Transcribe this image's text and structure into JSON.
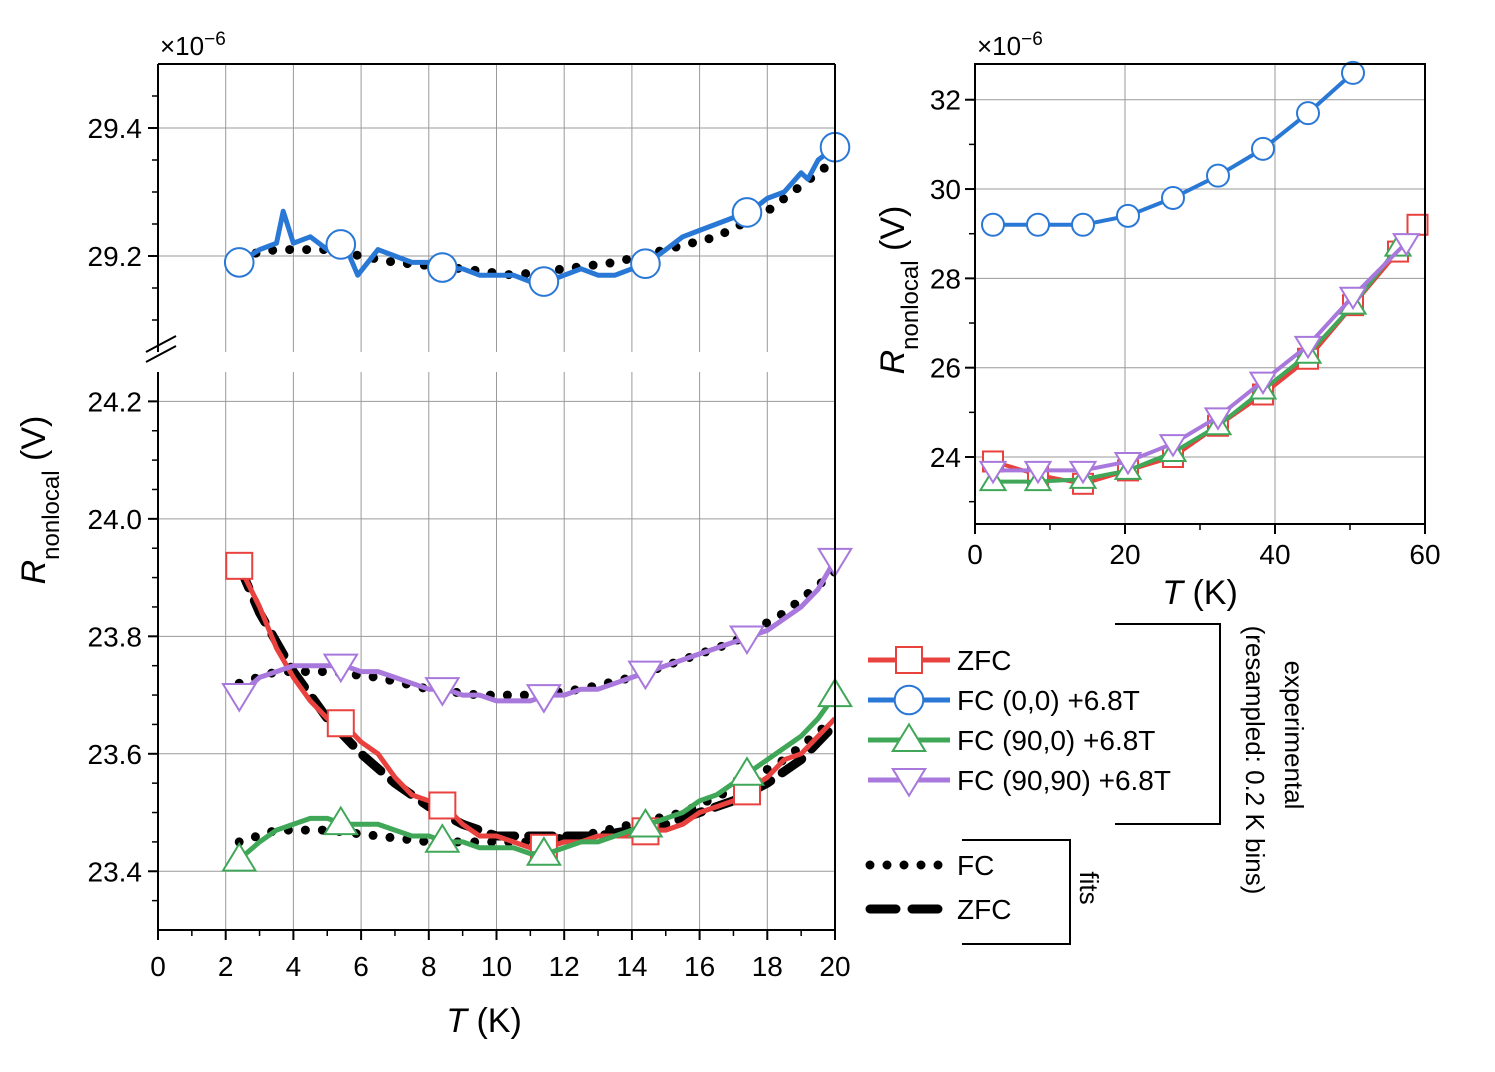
{
  "main_chart": {
    "type": "line",
    "multiplier": "×10",
    "multiplier_exp": "−6",
    "xlabel_italic": "T",
    "xlabel_unit": " (K)",
    "ylabel_italic": "R",
    "ylabel_sub": "nonlocal",
    "ylabel_unit": " (V)",
    "xlim": [
      0,
      20
    ],
    "x_ticks": [
      "0",
      "2",
      "4",
      "6",
      "8",
      "10",
      "12",
      "14",
      "16",
      "18",
      "20"
    ],
    "upper_ylim": [
      29.05,
      29.5
    ],
    "upper_y_ticks": [
      "29.2",
      "29.4"
    ],
    "lower_ylim": [
      23.3,
      24.25
    ],
    "lower_y_ticks": [
      "23.4",
      "23.6",
      "23.8",
      "24.0",
      "24.2"
    ],
    "broken_axis": true,
    "grid": true
  },
  "inset_chart": {
    "type": "line",
    "multiplier": "×10",
    "multiplier_exp": "−6",
    "xlabel_italic": "T",
    "xlabel_unit": " (K)",
    "ylabel_italic": "R",
    "ylabel_sub": "nonlocal",
    "ylabel_unit": " (V)",
    "xlim": [
      0,
      60
    ],
    "ylim": [
      22.5,
      32.8
    ],
    "x_ticks": [
      "0",
      "20",
      "40",
      "60"
    ],
    "y_ticks": [
      "24",
      "26",
      "28",
      "30",
      "32"
    ],
    "grid": true
  },
  "legend": {
    "experimental_label": "experimental",
    "resampled_label": "(resampled: 0.2 K bins)",
    "fits_label": "fits",
    "experimental_entries": [
      {
        "label": "ZFC",
        "color": "#e8413e",
        "marker": "square"
      },
      {
        "label": "FC (0,0) +6.8T",
        "color": "#2a78d6",
        "marker": "circle"
      },
      {
        "label": "FC (90,0) +6.8T",
        "color": "#3fa757",
        "marker": "triangle-up"
      },
      {
        "label": "FC (90,90) +6.8T",
        "color": "#a878dc",
        "marker": "triangle-down"
      }
    ],
    "fit_entries": [
      {
        "label": "FC",
        "style": "dotted",
        "color": "#000000"
      },
      {
        "label": "ZFC",
        "style": "dashed",
        "color": "#000000"
      }
    ]
  },
  "chart_data": [
    {
      "type": "line",
      "xlabel": "T (K)",
      "ylabel": "Rnonlocal (V)",
      "multiplier": "×10−6",
      "xlim": [
        0,
        20
      ],
      "series": [
        {
          "name": "ZFC",
          "color": "#e8413e",
          "marker": "square",
          "x": [
            2.4,
            3.0,
            3.5,
            4.0,
            4.5,
            5.0,
            5.5,
            6.0,
            6.5,
            7.0,
            7.5,
            8.0,
            8.5,
            9.0,
            9.5,
            10.0,
            10.5,
            11.0,
            11.5,
            12.0,
            12.5,
            13.0,
            13.5,
            14.0,
            14.5,
            15.0,
            15.5,
            16.0,
            16.5,
            17.0,
            17.5,
            18.0,
            18.5,
            19.0,
            19.5,
            20.0
          ],
          "y": [
            23.92,
            23.85,
            23.78,
            23.73,
            23.69,
            23.66,
            23.65,
            23.62,
            23.6,
            23.56,
            23.53,
            23.52,
            23.51,
            23.48,
            23.46,
            23.46,
            23.45,
            23.44,
            23.44,
            23.45,
            23.45,
            23.46,
            23.46,
            23.46,
            23.47,
            23.47,
            23.48,
            23.5,
            23.51,
            23.52,
            23.54,
            23.56,
            23.59,
            23.6,
            23.63,
            23.66
          ],
          "marker_x": [
            2.4,
            5.4,
            8.4,
            11.4,
            14.4,
            17.4
          ]
        },
        {
          "name": "FC (0,0) +6.8T",
          "color": "#2a78d6",
          "marker": "circle",
          "x": [
            2.4,
            3.0,
            3.5,
            3.7,
            4.0,
            4.5,
            5.0,
            5.5,
            5.9,
            6.5,
            7.0,
            7.5,
            8.0,
            8.5,
            9.0,
            9.5,
            10.0,
            10.5,
            11.0,
            11.5,
            12.0,
            12.5,
            13.0,
            13.5,
            14.0,
            14.5,
            15.0,
            15.5,
            16.0,
            16.5,
            17.0,
            17.5,
            18.0,
            18.5,
            19.0,
            19.2,
            19.5,
            20.0
          ],
          "y": [
            29.19,
            29.21,
            29.22,
            29.27,
            29.22,
            29.23,
            29.21,
            29.22,
            29.17,
            29.21,
            29.2,
            29.19,
            29.19,
            29.18,
            29.18,
            29.17,
            29.17,
            29.17,
            29.16,
            29.16,
            29.17,
            29.18,
            29.17,
            29.17,
            29.18,
            29.19,
            29.21,
            29.23,
            29.24,
            29.25,
            29.26,
            29.27,
            29.29,
            29.3,
            29.33,
            29.32,
            29.35,
            29.37
          ],
          "marker_x": [
            2.4,
            5.4,
            8.4,
            11.4,
            14.4,
            17.4,
            20.0
          ]
        },
        {
          "name": "FC (90,0) +6.8T",
          "color": "#3fa757",
          "marker": "triangle-up",
          "x": [
            2.4,
            3.0,
            3.5,
            4.0,
            4.5,
            5.0,
            5.5,
            6.0,
            6.5,
            7.0,
            7.5,
            8.0,
            8.5,
            9.0,
            9.5,
            10.0,
            10.5,
            11.0,
            11.5,
            12.0,
            12.5,
            13.0,
            13.5,
            14.0,
            14.5,
            15.0,
            15.5,
            16.0,
            16.5,
            17.0,
            17.5,
            18.0,
            18.5,
            19.0,
            19.5,
            20.0
          ],
          "y": [
            23.42,
            23.45,
            23.47,
            23.48,
            23.49,
            23.49,
            23.48,
            23.48,
            23.48,
            23.47,
            23.46,
            23.46,
            23.45,
            23.45,
            23.44,
            23.44,
            23.44,
            23.43,
            23.43,
            23.44,
            23.45,
            23.45,
            23.46,
            23.47,
            23.48,
            23.49,
            23.5,
            23.52,
            23.53,
            23.55,
            23.57,
            23.59,
            23.61,
            23.63,
            23.66,
            23.7
          ],
          "marker_x": [
            2.4,
            5.4,
            8.4,
            11.4,
            14.4,
            17.4,
            20.0
          ]
        },
        {
          "name": "FC (90,90) +6.8T",
          "color": "#a878dc",
          "marker": "triangle-down",
          "x": [
            2.4,
            3.0,
            3.5,
            4.0,
            4.5,
            5.0,
            5.5,
            6.0,
            6.5,
            7.0,
            7.5,
            8.0,
            8.5,
            9.0,
            9.5,
            10.0,
            10.5,
            11.0,
            11.5,
            12.0,
            12.5,
            13.0,
            13.5,
            14.0,
            14.5,
            15.0,
            15.5,
            16.0,
            16.5,
            17.0,
            17.5,
            18.0,
            18.5,
            19.0,
            19.5,
            20.0
          ],
          "y": [
            23.7,
            23.73,
            23.74,
            23.75,
            23.75,
            23.75,
            23.75,
            23.74,
            23.74,
            23.73,
            23.72,
            23.71,
            23.71,
            23.7,
            23.7,
            23.69,
            23.69,
            23.69,
            23.7,
            23.7,
            23.71,
            23.71,
            23.72,
            23.73,
            23.74,
            23.75,
            23.76,
            23.77,
            23.78,
            23.79,
            23.8,
            23.81,
            23.83,
            23.85,
            23.88,
            23.93
          ],
          "marker_x": [
            2.4,
            5.4,
            8.4,
            11.4,
            14.4,
            17.4,
            20.0
          ]
        },
        {
          "name": "FC",
          "style": "dotted",
          "fit": true,
          "x": [
            2.4,
            3.5,
            5.0,
            7.0,
            9.0,
            10.5,
            12.0,
            13.5,
            15.0,
            16.5,
            18.0,
            19.0,
            20.0
          ],
          "y": [
            29.2,
            29.21,
            29.21,
            29.19,
            29.18,
            29.17,
            29.18,
            29.19,
            29.21,
            29.23,
            29.27,
            29.31,
            29.35
          ]
        },
        {
          "name": "FC",
          "style": "dotted",
          "fit": true,
          "x": [
            2.4,
            3.5,
            5.0,
            6.5,
            8.0,
            9.5,
            11.0,
            12.5,
            14.0,
            15.5,
            17.0,
            18.5,
            20.0
          ],
          "y": [
            23.72,
            23.74,
            23.74,
            23.73,
            23.71,
            23.7,
            23.7,
            23.71,
            23.73,
            23.76,
            23.79,
            23.84,
            23.91
          ]
        },
        {
          "name": "FC",
          "style": "dotted",
          "fit": true,
          "x": [
            2.4,
            3.5,
            5.0,
            6.5,
            8.0,
            9.5,
            11.0,
            12.5,
            14.0,
            15.5,
            17.0,
            18.5,
            20.0
          ],
          "y": [
            23.45,
            23.47,
            23.47,
            23.46,
            23.45,
            23.45,
            23.45,
            23.46,
            23.48,
            23.5,
            23.54,
            23.59,
            23.66
          ]
        },
        {
          "name": "ZFC",
          "style": "dashed",
          "fit": true,
          "x": [
            2.4,
            3.0,
            4.0,
            5.0,
            6.0,
            7.0,
            8.0,
            9.0,
            10.0,
            11.0,
            12.0,
            13.0,
            14.0,
            15.0,
            16.0,
            17.0,
            18.0,
            19.0,
            20.0
          ],
          "y": [
            23.92,
            23.84,
            23.74,
            23.66,
            23.6,
            23.55,
            23.51,
            23.48,
            23.46,
            23.46,
            23.46,
            23.46,
            23.47,
            23.48,
            23.5,
            23.52,
            23.55,
            23.59,
            23.65
          ]
        }
      ]
    },
    {
      "type": "line",
      "xlabel": "T (K)",
      "ylabel": "Rnonlocal (V)",
      "multiplier": "×10−6",
      "xlim": [
        0,
        60
      ],
      "ylim": [
        22.5,
        32.8
      ],
      "series": [
        {
          "name": "ZFC",
          "color": "#e8413e",
          "marker": "square",
          "x": [
            2.4,
            8.4,
            14.4,
            20.4,
            26.4,
            32.4,
            38.4,
            44.4,
            50.4,
            56.4,
            59.0
          ],
          "y": [
            23.9,
            23.6,
            23.4,
            23.7,
            24.0,
            24.7,
            25.4,
            26.2,
            27.4,
            28.6,
            29.2
          ],
          "marker_x": [
            2.4,
            8.4,
            14.4,
            20.4,
            26.4,
            32.4,
            38.4,
            44.4,
            50.4,
            56.4,
            59.0
          ]
        },
        {
          "name": "FC (0,0) +6.8T",
          "color": "#2a78d6",
          "marker": "circle",
          "x": [
            2.4,
            8.4,
            14.4,
            20.4,
            26.4,
            32.4,
            38.4,
            44.4,
            50.4
          ],
          "y": [
            29.2,
            29.2,
            29.2,
            29.4,
            29.8,
            30.3,
            30.9,
            31.7,
            32.6
          ],
          "marker_x": [
            2.4,
            8.4,
            14.4,
            20.4,
            26.4,
            32.4,
            38.4,
            44.4,
            50.4
          ]
        },
        {
          "name": "FC (90,0) +6.8T",
          "color": "#3fa757",
          "marker": "triangle-up",
          "x": [
            2.4,
            8.4,
            14.4,
            20.4,
            26.4,
            32.4,
            38.4,
            44.4,
            50.4,
            56.4
          ],
          "y": [
            23.45,
            23.45,
            23.5,
            23.7,
            24.1,
            24.7,
            25.5,
            26.3,
            27.4,
            28.7
          ],
          "marker_x": [
            2.4,
            8.4,
            14.4,
            20.4,
            26.4,
            32.4,
            38.4,
            44.4,
            50.4,
            56.4
          ]
        },
        {
          "name": "FC (90,90) +6.8T",
          "color": "#a878dc",
          "marker": "triangle-down",
          "x": [
            2.4,
            8.4,
            14.4,
            20.4,
            26.4,
            32.4,
            38.4,
            44.4,
            50.4,
            57.5
          ],
          "y": [
            23.7,
            23.7,
            23.7,
            23.9,
            24.3,
            24.9,
            25.7,
            26.5,
            27.6,
            28.8
          ],
          "marker_x": [
            2.4,
            8.4,
            14.4,
            20.4,
            26.4,
            32.4,
            38.4,
            44.4,
            50.4,
            57.5
          ]
        }
      ]
    }
  ]
}
